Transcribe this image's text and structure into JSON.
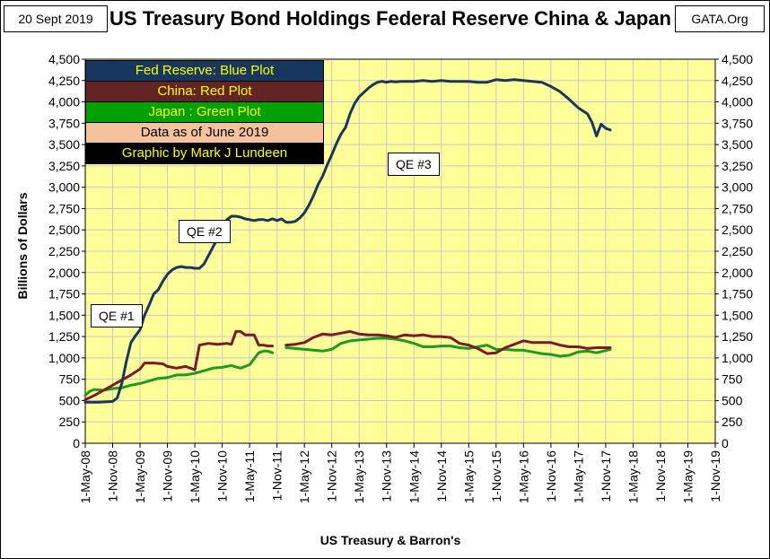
{
  "header": {
    "date": "20 Sept 2019",
    "title": "US Treasury Bond Holdings Federal Reserve China & Japan",
    "source": "GATA.Org"
  },
  "legend": [
    {
      "text": "Fed Reserve: Blue Plot",
      "bg": "#17375e",
      "fg": "#ffff00"
    },
    {
      "text": "China: Red Plot",
      "bg": "#632523",
      "fg": "#ffff00"
    },
    {
      "text": "Japan : Green Plot",
      "bg": "#00a000",
      "fg": "#ffff00"
    },
    {
      "text": "Data as of June 2019",
      "bg": "#f5c29e",
      "fg": "#000000"
    },
    {
      "text": "Graphic by Mark J Lundeen",
      "bg": "#000000",
      "fg": "#ffff00"
    }
  ],
  "annotations": {
    "qe1": "QE #1",
    "qe2": "QE #2",
    "qe3": "QE #3"
  },
  "colors": {
    "plot_bg": "#ffff99",
    "grid": "#c8c8c8",
    "fed": "#17375e",
    "china": "#7b1a2a",
    "japan": "#1e9a1e"
  },
  "chart_data": {
    "type": "line",
    "title": "US Treasury Bond Holdings Federal Reserve China & Japan",
    "xlabel": "US Treasury & Barron's",
    "ylabel": "Billions of Dollars",
    "ylim": [
      0,
      4500
    ],
    "y_ticks": [
      "0",
      "250",
      "500",
      "750",
      "1,000",
      "1,250",
      "1,500",
      "1,750",
      "2,000",
      "2,250",
      "2,500",
      "2,750",
      "3,000",
      "3,250",
      "3,500",
      "3,750",
      "4,000",
      "4,250",
      "4,500"
    ],
    "x_ticks": [
      "1-May-08",
      "1-Nov-08",
      "1-May-09",
      "1-Nov-09",
      "1-May-10",
      "1-Nov-10",
      "1-May-11",
      "1-Nov-11",
      "1-May-12",
      "1-Nov-12",
      "1-May-13",
      "1-Nov-13",
      "1-May-14",
      "1-Nov-14",
      "1-May-15",
      "1-Nov-15",
      "1-May-16",
      "1-Nov-16",
      "1-May-17",
      "1-Nov-17",
      "1-May-18",
      "1-Nov-18",
      "1-May-19",
      "1-Nov-19"
    ],
    "x_unit": "months since May 2008",
    "xlim": [
      0,
      138
    ],
    "series": [
      {
        "name": "Fed Reserve",
        "color": "#17375e",
        "segments": [
          [
            [
              0,
              480
            ],
            [
              3,
              480
            ],
            [
              6,
              490
            ],
            [
              7,
              530
            ],
            [
              8,
              700
            ],
            [
              9,
              960
            ],
            [
              10,
              1180
            ],
            [
              11,
              1260
            ],
            [
              12,
              1330
            ],
            [
              13,
              1500
            ],
            [
              14,
              1620
            ],
            [
              15,
              1750
            ],
            [
              16,
              1800
            ],
            [
              17,
              1900
            ],
            [
              18,
              1980
            ],
            [
              19,
              2030
            ],
            [
              20,
              2060
            ],
            [
              21,
              2070
            ],
            [
              22,
              2060
            ],
            [
              23,
              2060
            ],
            [
              24,
              2050
            ],
            [
              25,
              2050
            ],
            [
              26,
              2100
            ],
            [
              27,
              2200
            ],
            [
              28,
              2300
            ],
            [
              29,
              2400
            ],
            [
              30,
              2520
            ],
            [
              31,
              2620
            ],
            [
              32,
              2660
            ],
            [
              33,
              2660
            ],
            [
              34,
              2650
            ],
            [
              35,
              2630
            ],
            [
              36,
              2620
            ],
            [
              37,
              2610
            ],
            [
              38,
              2620
            ],
            [
              39,
              2620
            ],
            [
              40,
              2610
            ],
            [
              41,
              2630
            ],
            [
              42,
              2610
            ],
            [
              43,
              2630
            ],
            [
              44,
              2590
            ],
            [
              45,
              2590
            ],
            [
              46,
              2600
            ],
            [
              47,
              2640
            ],
            [
              48,
              2700
            ],
            [
              49,
              2790
            ],
            [
              50,
              2900
            ],
            [
              51,
              3030
            ],
            [
              52,
              3130
            ],
            [
              53,
              3260
            ],
            [
              54,
              3380
            ],
            [
              55,
              3510
            ],
            [
              56,
              3620
            ],
            [
              57,
              3700
            ],
            [
              58,
              3860
            ],
            [
              59,
              3980
            ],
            [
              60,
              4060
            ],
            [
              61,
              4110
            ],
            [
              62,
              4160
            ],
            [
              63,
              4200
            ],
            [
              64,
              4230
            ],
            [
              65,
              4240
            ],
            [
              66,
              4230
            ],
            [
              67,
              4240
            ],
            [
              68,
              4235
            ],
            [
              69,
              4240
            ],
            [
              70,
              4240
            ],
            [
              72,
              4240
            ],
            [
              74,
              4250
            ],
            [
              76,
              4240
            ],
            [
              78,
              4250
            ],
            [
              80,
              4240
            ],
            [
              82,
              4240
            ],
            [
              84,
              4240
            ],
            [
              86,
              4230
            ],
            [
              88,
              4230
            ],
            [
              90,
              4260
            ],
            [
              92,
              4250
            ],
            [
              94,
              4260
            ],
            [
              96,
              4250
            ],
            [
              98,
              4240
            ],
            [
              100,
              4230
            ],
            [
              102,
              4180
            ],
            [
              104,
              4120
            ],
            [
              106,
              4030
            ],
            [
              108,
              3930
            ],
            [
              110,
              3860
            ],
            [
              111,
              3760
            ],
            [
              112,
              3600
            ],
            [
              113,
              3740
            ],
            [
              114,
              3690
            ],
            [
              115,
              3670
            ]
          ]
        ]
      },
      {
        "name": "China",
        "color": "#7b1a2a",
        "segments": [
          [
            [
              0,
              510
            ],
            [
              2,
              560
            ],
            [
              4,
              620
            ],
            [
              6,
              680
            ],
            [
              8,
              740
            ],
            [
              10,
              800
            ],
            [
              12,
              870
            ],
            [
              13,
              940
            ],
            [
              15,
              940
            ],
            [
              17,
              930
            ],
            [
              18,
              900
            ],
            [
              20,
              880
            ],
            [
              21,
              890
            ],
            [
              22,
              900
            ],
            [
              24,
              860
            ],
            [
              25,
              1150
            ],
            [
              27,
              1170
            ],
            [
              29,
              1160
            ],
            [
              31,
              1170
            ],
            [
              32,
              1160
            ],
            [
              33,
              1310
            ],
            [
              34,
              1310
            ],
            [
              35,
              1270
            ],
            [
              37,
              1270
            ],
            [
              38,
              1150
            ],
            [
              39,
              1150
            ],
            [
              40,
              1140
            ],
            [
              41,
              1140
            ]
          ],
          [
            [
              44,
              1150
            ],
            [
              46,
              1160
            ],
            [
              48,
              1180
            ],
            [
              50,
              1240
            ],
            [
              52,
              1280
            ],
            [
              54,
              1270
            ],
            [
              56,
              1290
            ],
            [
              58,
              1310
            ],
            [
              60,
              1280
            ],
            [
              62,
              1270
            ],
            [
              64,
              1270
            ],
            [
              66,
              1260
            ],
            [
              68,
              1240
            ],
            [
              70,
              1270
            ],
            [
              72,
              1260
            ],
            [
              74,
              1270
            ],
            [
              76,
              1250
            ],
            [
              78,
              1250
            ],
            [
              80,
              1240
            ],
            [
              82,
              1170
            ],
            [
              84,
              1150
            ],
            [
              86,
              1110
            ],
            [
              88,
              1050
            ],
            [
              90,
              1060
            ],
            [
              92,
              1120
            ],
            [
              94,
              1160
            ],
            [
              96,
              1200
            ],
            [
              98,
              1180
            ],
            [
              100,
              1180
            ],
            [
              102,
              1180
            ],
            [
              104,
              1150
            ],
            [
              106,
              1130
            ],
            [
              108,
              1130
            ],
            [
              110,
              1110
            ],
            [
              112,
              1120
            ],
            [
              115,
              1120
            ]
          ]
        ]
      },
      {
        "name": "Japan",
        "color": "#1e9a1e",
        "segments": [
          [
            [
              0,
              560
            ],
            [
              1,
              610
            ],
            [
              2,
              630
            ],
            [
              4,
              620
            ],
            [
              6,
              640
            ],
            [
              8,
              650
            ],
            [
              10,
              680
            ],
            [
              12,
              700
            ],
            [
              14,
              730
            ],
            [
              16,
              760
            ],
            [
              18,
              770
            ],
            [
              20,
              800
            ],
            [
              22,
              800
            ],
            [
              24,
              820
            ],
            [
              26,
              850
            ],
            [
              28,
              880
            ],
            [
              30,
              890
            ],
            [
              32,
              910
            ],
            [
              34,
              880
            ],
            [
              36,
              920
            ],
            [
              38,
              1060
            ],
            [
              39,
              1080
            ],
            [
              40,
              1080
            ],
            [
              41,
              1060
            ]
          ],
          [
            [
              44,
              1120
            ],
            [
              46,
              1110
            ],
            [
              48,
              1100
            ],
            [
              50,
              1090
            ],
            [
              52,
              1080
            ],
            [
              54,
              1100
            ],
            [
              56,
              1170
            ],
            [
              58,
              1200
            ],
            [
              60,
              1210
            ],
            [
              62,
              1220
            ],
            [
              64,
              1230
            ],
            [
              66,
              1230
            ],
            [
              68,
              1220
            ],
            [
              70,
              1200
            ],
            [
              72,
              1170
            ],
            [
              74,
              1130
            ],
            [
              76,
              1130
            ],
            [
              78,
              1140
            ],
            [
              80,
              1140
            ],
            [
              82,
              1120
            ],
            [
              84,
              1110
            ],
            [
              86,
              1130
            ],
            [
              88,
              1150
            ],
            [
              90,
              1100
            ],
            [
              92,
              1100
            ],
            [
              94,
              1090
            ],
            [
              96,
              1090
            ],
            [
              98,
              1070
            ],
            [
              100,
              1050
            ],
            [
              102,
              1040
            ],
            [
              104,
              1020
            ],
            [
              106,
              1030
            ],
            [
              108,
              1070
            ],
            [
              110,
              1080
            ],
            [
              112,
              1060
            ],
            [
              115,
              1100
            ]
          ]
        ]
      }
    ]
  }
}
